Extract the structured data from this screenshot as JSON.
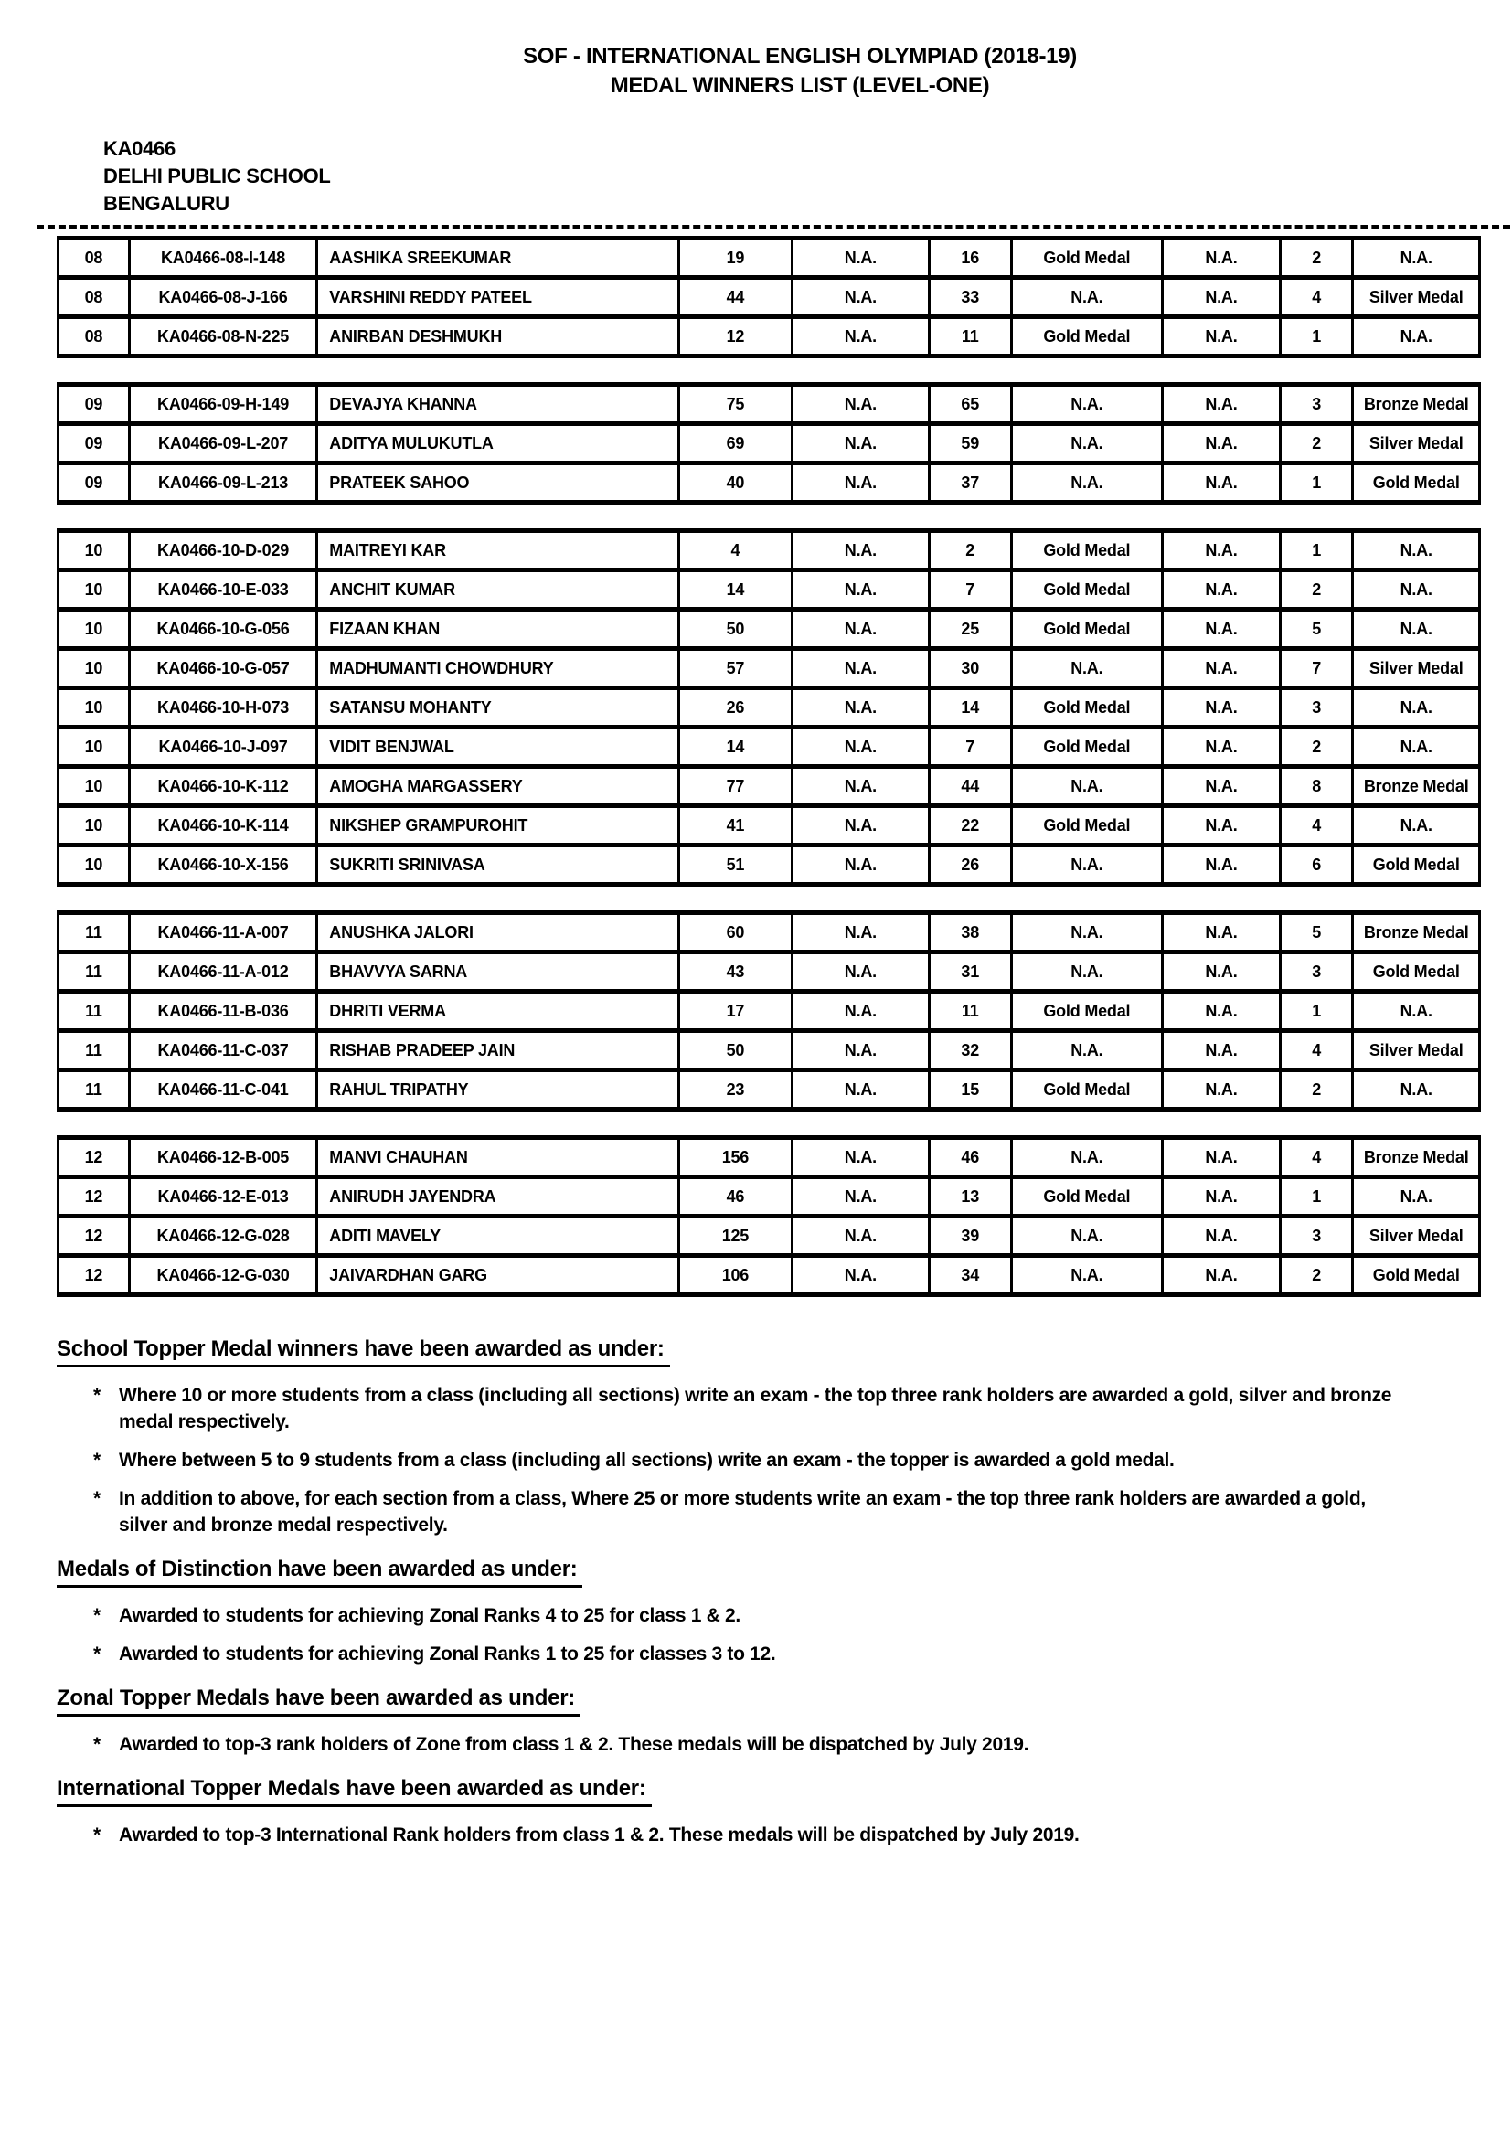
{
  "colors": {
    "text": "#000000",
    "background": "#ffffff"
  },
  "header": {
    "title_line1": "SOF - INTERNATIONAL ENGLISH OLYMPIAD (2018-19)",
    "title_line2": "MEDAL WINNERS LIST (LEVEL-ONE)",
    "school_code": "KA0466",
    "school_name": "DELHI PUBLIC SCHOOL",
    "school_city": "BENGALURU"
  },
  "table": {
    "groups": [
      {
        "class": "08",
        "rows": [
          [
            "08",
            "KA0466-08-I-148",
            "AASHIKA SREEKUMAR",
            "19",
            "N.A.",
            "16",
            "Gold Medal",
            "N.A.",
            "2",
            "N.A."
          ],
          [
            "08",
            "KA0466-08-J-166",
            "VARSHINI REDDY PATEEL",
            "44",
            "N.A.",
            "33",
            "N.A.",
            "N.A.",
            "4",
            "Silver Medal"
          ],
          [
            "08",
            "KA0466-08-N-225",
            "ANIRBAN DESHMUKH",
            "12",
            "N.A.",
            "11",
            "Gold Medal",
            "N.A.",
            "1",
            "N.A."
          ]
        ]
      },
      {
        "class": "09",
        "rows": [
          [
            "09",
            "KA0466-09-H-149",
            "DEVAJYA KHANNA",
            "75",
            "N.A.",
            "65",
            "N.A.",
            "N.A.",
            "3",
            "Bronze Medal"
          ],
          [
            "09",
            "KA0466-09-L-207",
            "ADITYA MULUKUTLA",
            "69",
            "N.A.",
            "59",
            "N.A.",
            "N.A.",
            "2",
            "Silver Medal"
          ],
          [
            "09",
            "KA0466-09-L-213",
            "PRATEEK SAHOO",
            "40",
            "N.A.",
            "37",
            "N.A.",
            "N.A.",
            "1",
            "Gold Medal"
          ]
        ]
      },
      {
        "class": "10",
        "rows": [
          [
            "10",
            "KA0466-10-D-029",
            "MAITREYI KAR",
            "4",
            "N.A.",
            "2",
            "Gold Medal",
            "N.A.",
            "1",
            "N.A."
          ],
          [
            "10",
            "KA0466-10-E-033",
            "ANCHIT KUMAR",
            "14",
            "N.A.",
            "7",
            "Gold Medal",
            "N.A.",
            "2",
            "N.A."
          ],
          [
            "10",
            "KA0466-10-G-056",
            "FIZAAN KHAN",
            "50",
            "N.A.",
            "25",
            "Gold Medal",
            "N.A.",
            "5",
            "N.A."
          ],
          [
            "10",
            "KA0466-10-G-057",
            "MADHUMANTI CHOWDHURY",
            "57",
            "N.A.",
            "30",
            "N.A.",
            "N.A.",
            "7",
            "Silver Medal"
          ],
          [
            "10",
            "KA0466-10-H-073",
            "SATANSU MOHANTY",
            "26",
            "N.A.",
            "14",
            "Gold Medal",
            "N.A.",
            "3",
            "N.A."
          ],
          [
            "10",
            "KA0466-10-J-097",
            "VIDIT BENJWAL",
            "14",
            "N.A.",
            "7",
            "Gold Medal",
            "N.A.",
            "2",
            "N.A."
          ],
          [
            "10",
            "KA0466-10-K-112",
            "AMOGHA MARGASSERY",
            "77",
            "N.A.",
            "44",
            "N.A.",
            "N.A.",
            "8",
            "Bronze Medal"
          ],
          [
            "10",
            "KA0466-10-K-114",
            "NIKSHEP GRAMPUROHIT",
            "41",
            "N.A.",
            "22",
            "Gold Medal",
            "N.A.",
            "4",
            "N.A."
          ],
          [
            "10",
            "KA0466-10-X-156",
            "SUKRITI SRINIVASA",
            "51",
            "N.A.",
            "26",
            "N.A.",
            "N.A.",
            "6",
            "Gold Medal"
          ]
        ]
      },
      {
        "class": "11",
        "rows": [
          [
            "11",
            "KA0466-11-A-007",
            "ANUSHKA JALORI",
            "60",
            "N.A.",
            "38",
            "N.A.",
            "N.A.",
            "5",
            "Bronze Medal"
          ],
          [
            "11",
            "KA0466-11-A-012",
            "BHAVVYA SARNA",
            "43",
            "N.A.",
            "31",
            "N.A.",
            "N.A.",
            "3",
            "Gold Medal"
          ],
          [
            "11",
            "KA0466-11-B-036",
            "DHRITI VERMA",
            "17",
            "N.A.",
            "11",
            "Gold Medal",
            "N.A.",
            "1",
            "N.A."
          ],
          [
            "11",
            "KA0466-11-C-037",
            "RISHAB PRADEEP JAIN",
            "50",
            "N.A.",
            "32",
            "N.A.",
            "N.A.",
            "4",
            "Silver Medal"
          ],
          [
            "11",
            "KA0466-11-C-041",
            "RAHUL TRIPATHY",
            "23",
            "N.A.",
            "15",
            "Gold Medal",
            "N.A.",
            "2",
            "N.A."
          ]
        ]
      },
      {
        "class": "12",
        "rows": [
          [
            "12",
            "KA0466-12-B-005",
            "MANVI CHAUHAN",
            "156",
            "N.A.",
            "46",
            "N.A.",
            "N.A.",
            "4",
            "Bronze Medal"
          ],
          [
            "12",
            "KA0466-12-E-013",
            "ANIRUDH JAYENDRA",
            "46",
            "N.A.",
            "13",
            "Gold Medal",
            "N.A.",
            "1",
            "N.A."
          ],
          [
            "12",
            "KA0466-12-G-028",
            "ADITI MAVELY",
            "125",
            "N.A.",
            "39",
            "N.A.",
            "N.A.",
            "3",
            "Silver Medal"
          ],
          [
            "12",
            "KA0466-12-G-030",
            "JAIVARDHAN GARG",
            "106",
            "N.A.",
            "34",
            "N.A.",
            "N.A.",
            "2",
            "Gold Medal"
          ]
        ]
      }
    ]
  },
  "notes": [
    {
      "heading": "School Topper Medal winners have been awarded as under:",
      "bullets": [
        "Where 10 or more students from a class (including all sections) write an exam - the  top three rank holders are awarded a gold, silver and bronze medal respectively.",
        "Where between 5 to 9 students from a class (including all sections) write an exam - the topper is awarded a gold medal.",
        "In addition to above, for each section from a class, Where 25 or more students write an exam - the top three rank holders are awarded a gold, silver and bronze medal respectively."
      ]
    },
    {
      "heading": "Medals of Distinction have been awarded as under:",
      "bullets": [
        "Awarded to students for achieving Zonal Ranks 4 to 25 for class 1 & 2.",
        "Awarded to students for achieving Zonal Ranks 1 to 25 for classes 3 to 12."
      ]
    },
    {
      "heading": "Zonal Topper Medals have been awarded as under:",
      "bullets": [
        "Awarded to top-3 rank holders of Zone from class 1 & 2. These medals will be dispatched by July 2019."
      ]
    },
    {
      "heading": "International Topper Medals have been awarded as under:",
      "bullets": [
        "Awarded to top-3 International Rank holders from class 1 & 2. These medals will be dispatched by July 2019."
      ]
    }
  ]
}
